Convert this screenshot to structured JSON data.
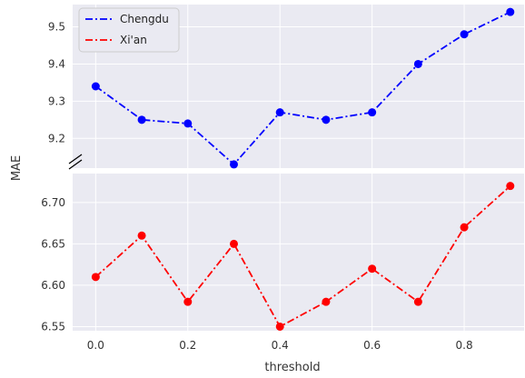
{
  "chart_data": {
    "type": "line",
    "xlabel": "threshold",
    "ylabel": "MAE",
    "x": [
      0.0,
      0.1,
      0.2,
      0.3,
      0.4,
      0.5,
      0.6,
      0.7,
      0.8,
      0.9
    ],
    "x_ticks": [
      "0.0",
      "0.2",
      "0.4",
      "0.6",
      "0.8"
    ],
    "xlim": [
      -0.05,
      0.93
    ],
    "broken_axis": true,
    "grid": true,
    "legend_position": "top-left",
    "series": [
      {
        "name": "Chengdu",
        "color": "#0000ff",
        "linestyle": "dash-dot",
        "marker": "circle",
        "values": [
          9.34,
          9.25,
          9.24,
          9.13,
          9.27,
          9.25,
          9.27,
          9.4,
          9.48,
          9.54
        ],
        "ylim": [
          9.12,
          9.56
        ],
        "y_ticks": [
          "9.2",
          "9.3",
          "9.4",
          "9.5"
        ]
      },
      {
        "name": "Xi'an",
        "color": "#ff0000",
        "linestyle": "dash-dot",
        "marker": "circle",
        "values": [
          6.61,
          6.66,
          6.58,
          6.65,
          6.55,
          6.58,
          6.62,
          6.58,
          6.67,
          6.72
        ],
        "ylim": [
          6.545,
          6.735
        ],
        "y_ticks": [
          "6.55",
          "6.60",
          "6.65",
          "6.70"
        ]
      }
    ]
  }
}
